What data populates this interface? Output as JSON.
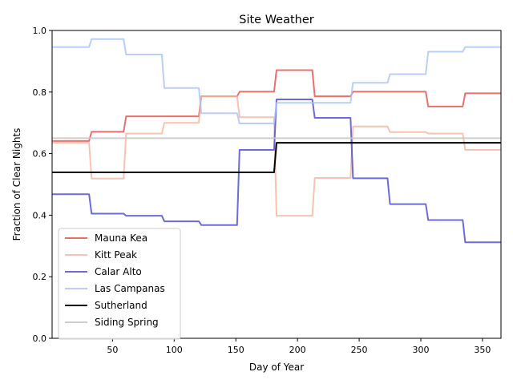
{
  "chart_data": {
    "type": "line",
    "title": "Site Weather",
    "xlabel": "Day of Year",
    "ylabel": "Fraction of Clear Nights",
    "xlim": [
      1,
      365
    ],
    "ylim": [
      0,
      1
    ],
    "xticks": [
      50,
      100,
      150,
      200,
      250,
      300,
      350
    ],
    "yticks": [
      0.0,
      0.2,
      0.4,
      0.6,
      0.8,
      1.0
    ],
    "grid": false,
    "legend_position": "lower-left",
    "series": [
      {
        "name": "Mauna Kea",
        "color": "#e8615d",
        "alpha": 0.9,
        "steps": [
          {
            "start": 1,
            "end": 31,
            "value": 0.641
          },
          {
            "start": 32,
            "end": 59,
            "value": 0.671
          },
          {
            "start": 60,
            "end": 120,
            "value": 0.721
          },
          {
            "start": 121,
            "end": 151,
            "value": 0.786
          },
          {
            "start": 152,
            "end": 181,
            "value": 0.801
          },
          {
            "start": 182,
            "end": 212,
            "value": 0.871
          },
          {
            "start": 213,
            "end": 243,
            "value": 0.786
          },
          {
            "start": 244,
            "end": 304,
            "value": 0.801
          },
          {
            "start": 305,
            "end": 334,
            "value": 0.753
          },
          {
            "start": 335,
            "end": 365,
            "value": 0.796
          }
        ]
      },
      {
        "name": "Kitt Peak",
        "color": "#f5b49c",
        "alpha": 0.8,
        "steps": [
          {
            "start": 1,
            "end": 31,
            "value": 0.635
          },
          {
            "start": 32,
            "end": 59,
            "value": 0.519
          },
          {
            "start": 60,
            "end": 90,
            "value": 0.665
          },
          {
            "start": 91,
            "end": 120,
            "value": 0.7
          },
          {
            "start": 121,
            "end": 151,
            "value": 0.786
          },
          {
            "start": 152,
            "end": 181,
            "value": 0.718
          },
          {
            "start": 182,
            "end": 212,
            "value": 0.398
          },
          {
            "start": 213,
            "end": 243,
            "value": 0.521
          },
          {
            "start": 244,
            "end": 273,
            "value": 0.688
          },
          {
            "start": 274,
            "end": 304,
            "value": 0.67
          },
          {
            "start": 305,
            "end": 334,
            "value": 0.665
          },
          {
            "start": 335,
            "end": 365,
            "value": 0.612
          }
        ]
      },
      {
        "name": "Calar Alto",
        "color": "#4646d6",
        "alpha": 0.8,
        "steps": [
          {
            "start": 1,
            "end": 31,
            "value": 0.468
          },
          {
            "start": 32,
            "end": 59,
            "value": 0.405
          },
          {
            "start": 60,
            "end": 90,
            "value": 0.398
          },
          {
            "start": 91,
            "end": 120,
            "value": 0.38
          },
          {
            "start": 121,
            "end": 151,
            "value": 0.368
          },
          {
            "start": 152,
            "end": 181,
            "value": 0.612
          },
          {
            "start": 182,
            "end": 212,
            "value": 0.776
          },
          {
            "start": 213,
            "end": 243,
            "value": 0.716
          },
          {
            "start": 244,
            "end": 273,
            "value": 0.52
          },
          {
            "start": 274,
            "end": 304,
            "value": 0.436
          },
          {
            "start": 305,
            "end": 334,
            "value": 0.384
          },
          {
            "start": 335,
            "end": 365,
            "value": 0.312
          }
        ]
      },
      {
        "name": "Las Campanas",
        "color": "#a9c2f5",
        "alpha": 0.8,
        "steps": [
          {
            "start": 1,
            "end": 31,
            "value": 0.946
          },
          {
            "start": 32,
            "end": 59,
            "value": 0.972
          },
          {
            "start": 60,
            "end": 90,
            "value": 0.922
          },
          {
            "start": 91,
            "end": 120,
            "value": 0.813
          },
          {
            "start": 121,
            "end": 151,
            "value": 0.731
          },
          {
            "start": 152,
            "end": 181,
            "value": 0.698
          },
          {
            "start": 182,
            "end": 243,
            "value": 0.765
          },
          {
            "start": 244,
            "end": 273,
            "value": 0.83
          },
          {
            "start": 274,
            "end": 304,
            "value": 0.858
          },
          {
            "start": 305,
            "end": 334,
            "value": 0.931
          },
          {
            "start": 335,
            "end": 365,
            "value": 0.946
          }
        ]
      },
      {
        "name": "Sutherland",
        "color": "#000000",
        "alpha": 1.0,
        "steps": [
          {
            "start": 1,
            "end": 181,
            "value": 0.539
          },
          {
            "start": 182,
            "end": 365,
            "value": 0.635
          }
        ]
      },
      {
        "name": "Siding Spring",
        "color": "#c8c8c8",
        "alpha": 0.9,
        "steps": [
          {
            "start": 1,
            "end": 365,
            "value": 0.65
          }
        ]
      }
    ]
  }
}
